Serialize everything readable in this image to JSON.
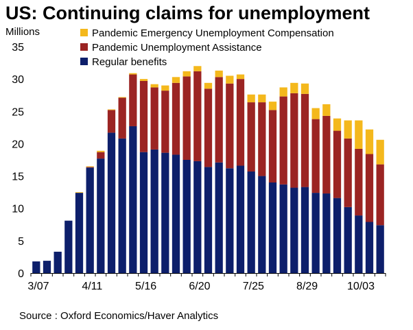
{
  "chart_data": {
    "type": "bar",
    "stacked": true,
    "title": "US: Continuing claims for unemployment",
    "ylabel": "Millions",
    "xlabel": "",
    "ylim": [
      0,
      35
    ],
    "yticks": [
      0,
      5,
      10,
      15,
      20,
      25,
      30,
      35
    ],
    "x_tick_labels": [
      "3/07",
      "4/11",
      "5/16",
      "6/20",
      "7/25",
      "8/29",
      "10/03"
    ],
    "x_tick_label_weeks": [
      0,
      5,
      10,
      15,
      20,
      25,
      30
    ],
    "legend_position": "top",
    "series": [
      {
        "name": "Regular benefits",
        "color": "#0d1f6b",
        "values": [
          1.8,
          1.9,
          3.3,
          8.1,
          12.4,
          16.3,
          17.7,
          21.7,
          20.8,
          22.7,
          18.7,
          19.1,
          18.6,
          18.3,
          17.5,
          17.3,
          16.4,
          17.1,
          16.2,
          16.6,
          15.7,
          15.0,
          14.0,
          13.7,
          13.2,
          13.3,
          12.4,
          12.3,
          11.6,
          10.2,
          8.9,
          7.9,
          7.4
        ]
      },
      {
        "name": "Pandemic Unemployment Assistance",
        "color": "#9b2423",
        "values": [
          0,
          0,
          0,
          0,
          0,
          0.1,
          1.0,
          3.5,
          6.3,
          8.0,
          11.0,
          9.6,
          9.6,
          11.1,
          12.9,
          13.9,
          12.1,
          13.2,
          13.1,
          13.4,
          10.7,
          11.4,
          11.2,
          13.6,
          14.6,
          14.4,
          11.4,
          12.0,
          10.4,
          10.6,
          10.3,
          10.5,
          9.4
        ]
      },
      {
        "name": "Pandemic Emergency Unemployment Compensation",
        "color": "#f4b81c",
        "values": [
          0,
          0,
          0,
          0,
          0.1,
          0.1,
          0.2,
          0.1,
          0.1,
          0.2,
          0.3,
          0.5,
          0.8,
          0.9,
          0.8,
          0.8,
          0.9,
          1.0,
          1.2,
          0.7,
          1.2,
          1.2,
          1.3,
          1.4,
          1.6,
          1.6,
          1.7,
          1.8,
          1.9,
          2.8,
          4.4,
          3.8,
          3.8
        ]
      }
    ],
    "legend_order": [
      "Pandemic Emergency Unemployment Compensation",
      "Pandemic Unemployment Assistance",
      "Regular benefits"
    ]
  },
  "source": "Source : Oxford Economics/Haver Analytics"
}
